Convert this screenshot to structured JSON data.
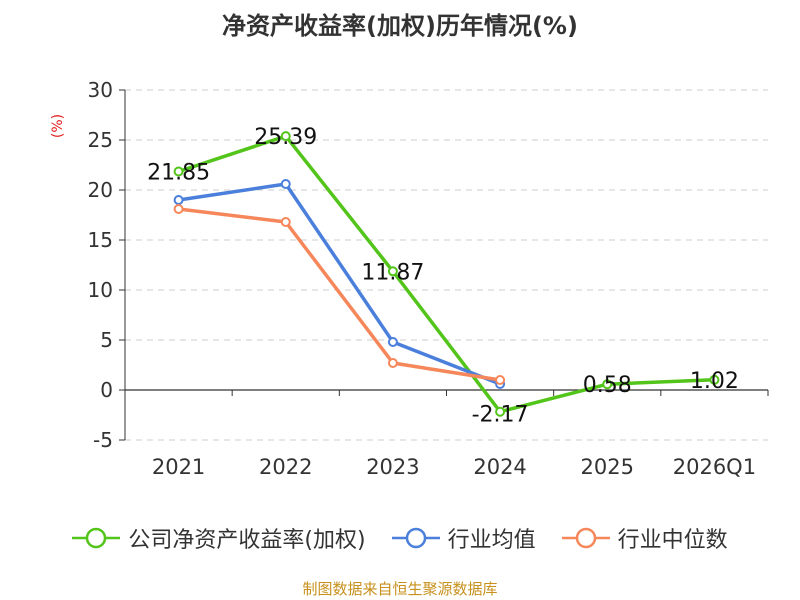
{
  "title": "净资产收益率(加权)历年情况(%)",
  "unit_label": "(%)",
  "source": "制图数据来自恒生聚源数据库",
  "chart_data": {
    "type": "line",
    "categories": [
      "2021",
      "2022",
      "2023",
      "2024",
      "2025",
      "2026Q1"
    ],
    "ylim": [
      -5,
      30
    ],
    "yticks": [
      -5,
      0,
      5,
      10,
      15,
      20,
      25,
      30
    ],
    "grid": true,
    "legend_position": "bottom",
    "series": [
      {
        "name": "公司净资产收益率(加权)",
        "color": "#52c41a",
        "values": [
          21.85,
          25.39,
          11.87,
          -2.17,
          0.58,
          1.02
        ],
        "labels": [
          "21.85",
          "25.39",
          "11.87",
          "-2.17",
          "0.58",
          "1.02"
        ]
      },
      {
        "name": "行业均值",
        "color": "#4a7fdc",
        "values": [
          19.0,
          20.6,
          4.8,
          0.6,
          null,
          null
        ]
      },
      {
        "name": "行业中位数",
        "color": "#f5875a",
        "values": [
          18.1,
          16.8,
          2.7,
          1.0,
          null,
          null
        ]
      }
    ]
  }
}
